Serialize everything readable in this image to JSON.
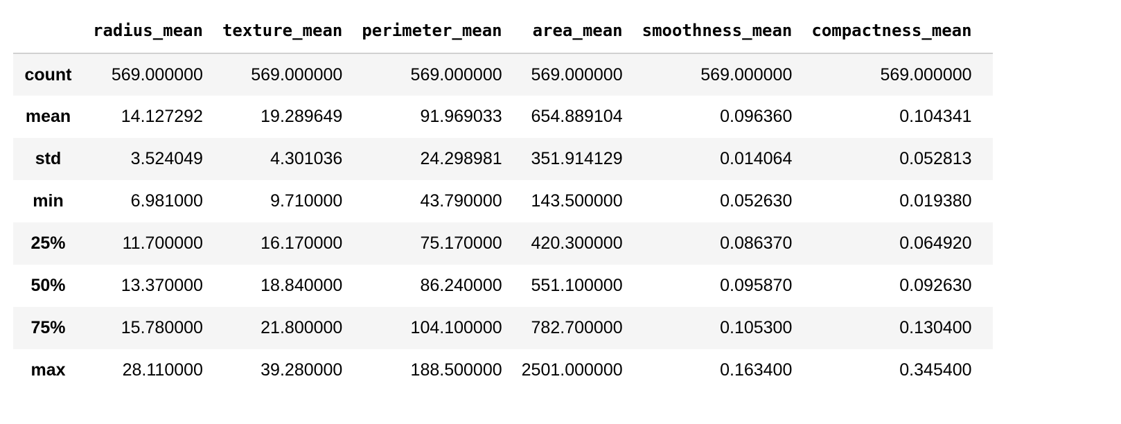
{
  "table": {
    "columns": [
      "radius_mean",
      "texture_mean",
      "perimeter_mean",
      "area_mean",
      "smoothness_mean",
      "compactness_mean"
    ],
    "rows": [
      {
        "label": "count",
        "values": [
          "569.000000",
          "569.000000",
          "569.000000",
          "569.000000",
          "569.000000",
          "569.000000"
        ]
      },
      {
        "label": "mean",
        "values": [
          "14.127292",
          "19.289649",
          "91.969033",
          "654.889104",
          "0.096360",
          "0.104341"
        ]
      },
      {
        "label": "std",
        "values": [
          "3.524049",
          "4.301036",
          "24.298981",
          "351.914129",
          "0.014064",
          "0.052813"
        ]
      },
      {
        "label": "min",
        "values": [
          "6.981000",
          "9.710000",
          "43.790000",
          "143.500000",
          "0.052630",
          "0.019380"
        ]
      },
      {
        "label": "25%",
        "values": [
          "11.700000",
          "16.170000",
          "75.170000",
          "420.300000",
          "0.086370",
          "0.064920"
        ]
      },
      {
        "label": "50%",
        "values": [
          "13.370000",
          "18.840000",
          "86.240000",
          "551.100000",
          "0.095870",
          "0.092630"
        ]
      },
      {
        "label": "75%",
        "values": [
          "15.780000",
          "21.800000",
          "104.100000",
          "782.700000",
          "0.105300",
          "0.130400"
        ]
      },
      {
        "label": "max",
        "values": [
          "28.110000",
          "39.280000",
          "188.500000",
          "2501.000000",
          "0.163400",
          "0.345400"
        ]
      }
    ]
  }
}
